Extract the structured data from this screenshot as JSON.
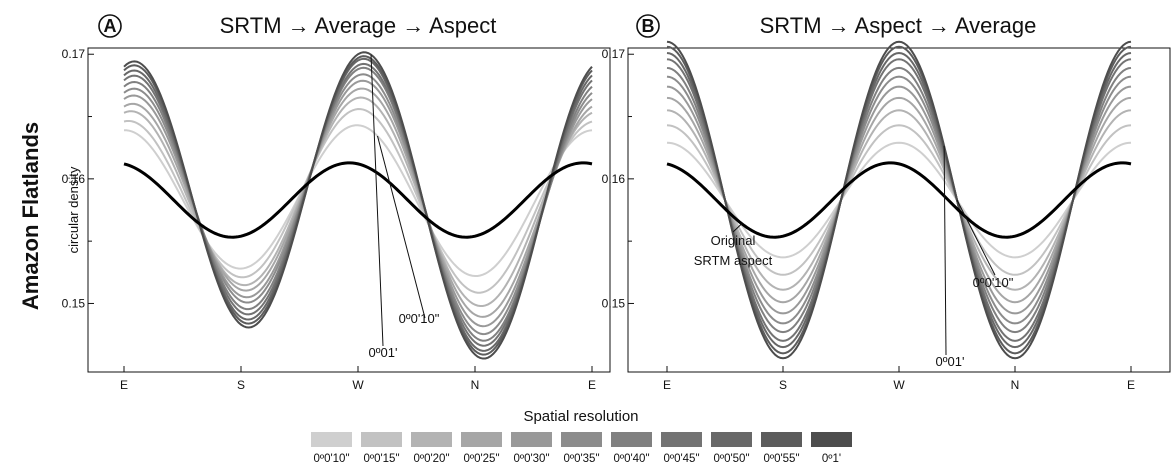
{
  "row_label": "Amazon Flatlands",
  "legend": {
    "title": "Spatial resolution",
    "items": [
      "0º0'10\"",
      "0º0'15\"",
      "0º0'20\"",
      "0º0'25\"",
      "0º0'30\"",
      "0º0'35\"",
      "0º0'40\"",
      "0º0'45\"",
      "0º0'50\"",
      "0º0'55\"",
      "0º1'"
    ],
    "colors": [
      "#cfcfcf",
      "#c2c2c2",
      "#b3b3b3",
      "#a6a6a6",
      "#999999",
      "#8c8c8c",
      "#808080",
      "#737373",
      "#686868",
      "#5c5c5c",
      "#4d4d4d"
    ]
  },
  "chart_data": [
    {
      "type": "line",
      "badge": "A",
      "title": "SRTM → Average → Aspect",
      "ylabel": "circular density",
      "x_ticks": [
        "E",
        "S",
        "W",
        "N",
        "E"
      ],
      "y_ticks": [
        "0.17",
        "0.16",
        "0.15"
      ],
      "ylim": [
        0.1445,
        0.1705
      ],
      "x_range_deg": [
        0,
        360
      ],
      "base_series": {
        "name": "Original SRTM aspect",
        "params": [
          0.1583,
          0.0029,
          0.0,
          0.0,
          -0.0007
        ]
      },
      "series": [
        {
          "name": "0º0'10\"",
          "params": [
            0.1583,
            0.0058,
            -0.0002,
            0.0003,
            0.0
          ]
        },
        {
          "name": "0º0'15\"",
          "params": [
            0.1583,
            0.0068,
            -0.0005,
            0.0006,
            0.0005
          ]
        },
        {
          "name": "0º0'20\"",
          "params": [
            0.1583,
            0.0076,
            -0.0006,
            0.0008,
            0.001
          ]
        },
        {
          "name": "0º0'25\"",
          "params": [
            0.1583,
            0.0082,
            -0.0007,
            0.001,
            0.0014
          ]
        },
        {
          "name": "0º0'30\"",
          "params": [
            0.1583,
            0.0088,
            -0.0007,
            0.0011,
            0.0017
          ]
        },
        {
          "name": "0º0'35\"",
          "params": [
            0.1583,
            0.0093,
            -0.0007,
            0.0012,
            0.0019
          ]
        },
        {
          "name": "0º0'40\"",
          "params": [
            0.1583,
            0.0098,
            -0.0007,
            0.0012,
            0.0021
          ]
        },
        {
          "name": "0º0'45\"",
          "params": [
            0.1583,
            0.0102,
            -0.0006,
            0.0012,
            0.0022
          ]
        },
        {
          "name": "0º0'50\"",
          "params": [
            0.1583,
            0.0106,
            -0.0006,
            0.0012,
            0.0023
          ]
        },
        {
          "name": "0º0'55\"",
          "params": [
            0.1583,
            0.0109,
            -0.0005,
            0.0012,
            0.0024
          ]
        },
        {
          "name": "0º1'",
          "params": [
            0.1583,
            0.0112,
            -0.0005,
            0.0012,
            0.0025
          ]
        }
      ],
      "annotations": [
        {
          "text": "0º0'10\"",
          "series": "0º0'10\"",
          "at_deg": 195
        },
        {
          "text": "0º01'",
          "series": "0º1'",
          "at_deg": 190
        }
      ]
    },
    {
      "type": "line",
      "badge": "B",
      "title": "SRTM  → Aspect → Average",
      "ylabel": "",
      "x_ticks": [
        "E",
        "S",
        "W",
        "N",
        "E"
      ],
      "y_ticks": [
        "0.17",
        "0.16",
        "0.15"
      ],
      "ylim": [
        0.1445,
        0.1705
      ],
      "x_range_deg": [
        0,
        360
      ],
      "base_series": {
        "name": "Original SRTM aspect",
        "params": [
          0.1583,
          0.0029,
          0.0,
          0.0,
          -0.0007
        ]
      },
      "series": [
        {
          "name": "0º0'10\"",
          "params": [
            0.1583,
            0.0046,
            0.0,
            0.0,
            0.0
          ]
        },
        {
          "name": "0º0'15\"",
          "params": [
            0.1583,
            0.006,
            0.0,
            0.0,
            0.0
          ]
        },
        {
          "name": "0º0'20\"",
          "params": [
            0.1583,
            0.0072,
            0.0,
            0.0,
            0.0
          ]
        },
        {
          "name": "0º0'25\"",
          "params": [
            0.1583,
            0.0082,
            0.0,
            0.0,
            0.0
          ]
        },
        {
          "name": "0º0'30\"",
          "params": [
            0.1583,
            0.0091,
            0.0,
            0.0,
            0.0
          ]
        },
        {
          "name": "0º0'35\"",
          "params": [
            0.1583,
            0.0099,
            0.0,
            0.0,
            0.0
          ]
        },
        {
          "name": "0º0'40\"",
          "params": [
            0.1583,
            0.0106,
            0.0,
            0.0,
            0.0
          ]
        },
        {
          "name": "0º0'45\"",
          "params": [
            0.1583,
            0.0113,
            0.0,
            0.0,
            0.0
          ]
        },
        {
          "name": "0º0'50\"",
          "params": [
            0.1583,
            0.0118,
            0.0,
            0.0,
            0.0
          ]
        },
        {
          "name": "0º0'55\"",
          "params": [
            0.1583,
            0.0123,
            0.0,
            0.0,
            0.0
          ]
        },
        {
          "name": "0º1'",
          "params": [
            0.1583,
            0.0127,
            0.0,
            0.0,
            0.0
          ]
        }
      ],
      "annotations": [
        {
          "text": "0º0'10\"",
          "series": "0º0'10\"",
          "at_deg": 225
        },
        {
          "text": "0º01'",
          "series": "0º1'",
          "at_deg": 215
        },
        {
          "text": "Original",
          "series": "Original SRTM aspect",
          "at_deg": 58
        },
        {
          "text": "SRTM aspect",
          "series": "Original SRTM aspect",
          "at_deg": 58
        }
      ]
    }
  ]
}
